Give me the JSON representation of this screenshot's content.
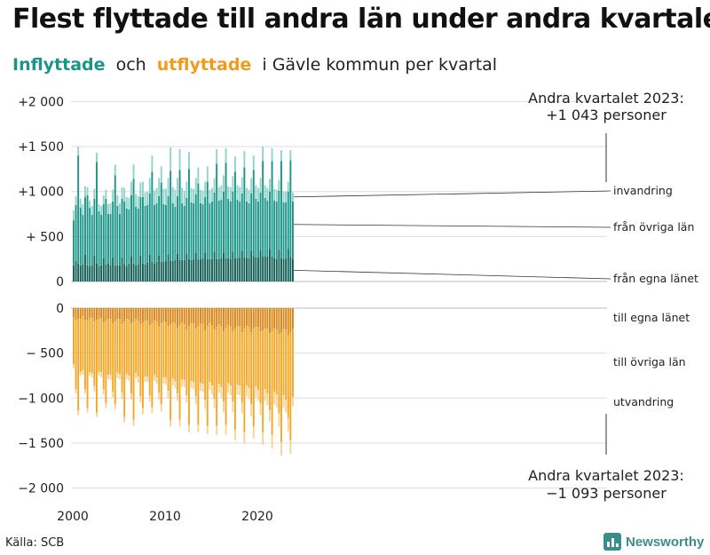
{
  "title": "Flest flyttade till andra län under andra kvartalet",
  "subtitle": {
    "in_label": "Inflyttade",
    "och": "och",
    "out_label": "utflyttade",
    "rest": "i Gävle  kommun  per  kvartal"
  },
  "source": "Källa: SCB",
  "logo": {
    "text": "Newsworthy"
  },
  "colors": {
    "in_local": "#115e55",
    "in_other": "#1a9587",
    "in_immig": "#8fd3ca",
    "out_local": "#d98414",
    "out_other": "#f5a623",
    "out_emig": "#f5d49a",
    "grid": "#dddddd"
  },
  "chart_data": {
    "type": "bar",
    "subtype": "stacked-diverging",
    "x_start": 2000,
    "quarters_per_year": 4,
    "x_ticks": [
      "2000",
      "2010",
      "2020"
    ],
    "y_ticks_top": [
      "+2 000",
      "+1 500",
      "+1 000",
      "+  500",
      "0"
    ],
    "y_ticks_bottom": [
      "0",
      "− 500",
      "−1 000",
      "−1 500",
      "−2 000"
    ],
    "ylim": [
      -2000,
      2000
    ],
    "series_in_labels": [
      "från egna länet",
      "från övriga län",
      "invandring"
    ],
    "series_out_labels": [
      "till egna länet",
      "till övriga län",
      "utvandring"
    ],
    "annotation_top": {
      "line1": "Andra kvartalet 2023:",
      "line2": "+1 043 personer"
    },
    "annotation_bottom": {
      "line1": "Andra kvartalet 2023:",
      "line2": "−1 093 personer"
    },
    "in_local": [
      180,
      230,
      200,
      180,
      190,
      300,
      180,
      170,
      180,
      290,
      200,
      170,
      180,
      260,
      190,
      200,
      180,
      270,
      180,
      180,
      180,
      270,
      190,
      170,
      200,
      280,
      200,
      180,
      190,
      290,
      200,
      190,
      210,
      300,
      220,
      200,
      220,
      290,
      220,
      220,
      230,
      300,
      230,
      230,
      240,
      310,
      240,
      240,
      240,
      310,
      250,
      240,
      250,
      320,
      250,
      250,
      260,
      320,
      250,
      250,
      250,
      330,
      250,
      250,
      260,
      320,
      260,
      260,
      250,
      330,
      260,
      260,
      270,
      340,
      270,
      260,
      260,
      340,
      280,
      270,
      270,
      350,
      280,
      280,
      280,
      360,
      280,
      260,
      250,
      350,
      260,
      250,
      260,
      360,
      270,
      250
    ],
    "in_other": [
      500,
      620,
      1200,
      640,
      550,
      640,
      780,
      650,
      560,
      630,
      1130,
      610,
      560,
      600,
      730,
      550,
      570,
      620,
      1000,
      660,
      570,
      650,
      700,
      640,
      600,
      680,
      940,
      650,
      620,
      650,
      740,
      650,
      640,
      680,
      1000,
      650,
      650,
      660,
      880,
      640,
      620,
      650,
      1000,
      640,
      590,
      640,
      1000,
      630,
      600,
      620,
      1000,
      640,
      620,
      650,
      840,
      620,
      600,
      620,
      860,
      620,
      640,
      660,
      1060,
      650,
      650,
      680,
      1060,
      660,
      640,
      670,
      960,
      650,
      620,
      640,
      1000,
      630,
      610,
      640,
      960,
      650,
      620,
      640,
      1060,
      650,
      620,
      640,
      1060,
      640,
      640,
      660,
      1080,
      630,
      620,
      640,
      1080,
      640,
      650,
      690
    ],
    "in_immig": [
      110,
      100,
      100,
      100,
      120,
      120,
      90,
      80,
      100,
      110,
      100,
      80,
      100,
      100,
      100,
      110,
      120,
      130,
      120,
      120,
      120,
      130,
      150,
      130,
      130,
      150,
      160,
      140,
      140,
      160,
      170,
      150,
      150,
      170,
      180,
      160,
      170,
      200,
      180,
      170,
      180,
      200,
      260,
      180,
      190,
      200,
      230,
      170,
      170,
      180,
      190,
      160,
      160,
      180,
      180,
      150,
      150,
      170,
      170,
      150,
      150,
      160,
      160,
      150,
      160,
      180,
      160,
      140,
      160,
      170,
      170,
      160,
      160,
      180,
      180,
      150,
      150,
      170,
      160,
      150,
      150,
      160,
      160,
      140,
      140,
      140,
      140,
      130,
      130,
      120,
      120,
      120,
      120,
      110,
      110,
      100
    ],
    "out_local": [
      100,
      140,
      120,
      120,
      90,
      130,
      140,
      110,
      110,
      150,
      130,
      120,
      110,
      160,
      140,
      120,
      120,
      170,
      150,
      120,
      120,
      180,
      150,
      120,
      130,
      170,
      150,
      120,
      140,
      180,
      160,
      140,
      140,
      190,
      170,
      140,
      150,
      200,
      170,
      150,
      160,
      200,
      180,
      160,
      170,
      220,
      190,
      160,
      180,
      240,
      200,
      170,
      170,
      230,
      200,
      170,
      180,
      250,
      200,
      170,
      190,
      240,
      210,
      180,
      200,
      260,
      220,
      190,
      200,
      260,
      230,
      200,
      200,
      270,
      230,
      200,
      210,
      270,
      230,
      210,
      210,
      260,
      250,
      220,
      230,
      280,
      260,
      230,
      240,
      290,
      270,
      230,
      240,
      300,
      270,
      230
    ],
    "out_other": [
      520,
      760,
      1020,
      590,
      600,
      770,
      970,
      600,
      610,
      720,
      1030,
      590,
      600,
      740,
      920,
      620,
      620,
      760,
      920,
      600,
      610,
      760,
      1060,
      610,
      620,
      780,
      1090,
      600,
      620,
      800,
      950,
      620,
      620,
      780,
      930,
      600,
      620,
      740,
      900,
      620,
      610,
      720,
      1070,
      620,
      640,
      730,
      1050,
      630,
      620,
      730,
      1100,
      640,
      650,
      750,
      1100,
      660,
      660,
      770,
      1110,
      650,
      670,
      770,
      1100,
      660,
      680,
      780,
      1080,
      640,
      660,
      780,
      1120,
      650,
      660,
      780,
      1150,
      660,
      680,
      800,
      1090,
      660,
      700,
      800,
      1130,
      680,
      720,
      850,
      1150,
      700,
      720,
      880,
      1220,
      740,
      780,
      920,
      1200,
      760
    ],
    "out_emig": [
      50,
      50,
      50,
      40,
      50,
      50,
      50,
      40,
      50,
      60,
      50,
      40,
      60,
      60,
      50,
      50,
      60,
      60,
      50,
      60,
      60,
      70,
      60,
      60,
      60,
      70,
      70,
      60,
      70,
      70,
      70,
      60,
      60,
      70,
      70,
      70,
      70,
      80,
      80,
      70,
      80,
      80,
      70,
      80,
      80,
      80,
      80,
      80,
      80,
      80,
      80,
      80,
      80,
      90,
      80,
      90,
      90,
      100,
      90,
      90,
      100,
      100,
      100,
      100,
      110,
      120,
      110,
      110,
      110,
      120,
      120,
      110,
      110,
      120,
      130,
      120,
      120,
      130,
      130,
      120,
      120,
      130,
      140,
      130,
      130,
      130,
      150,
      140,
      140,
      150,
      150,
      140,
      140,
      150,
      150,
      100
    ]
  }
}
